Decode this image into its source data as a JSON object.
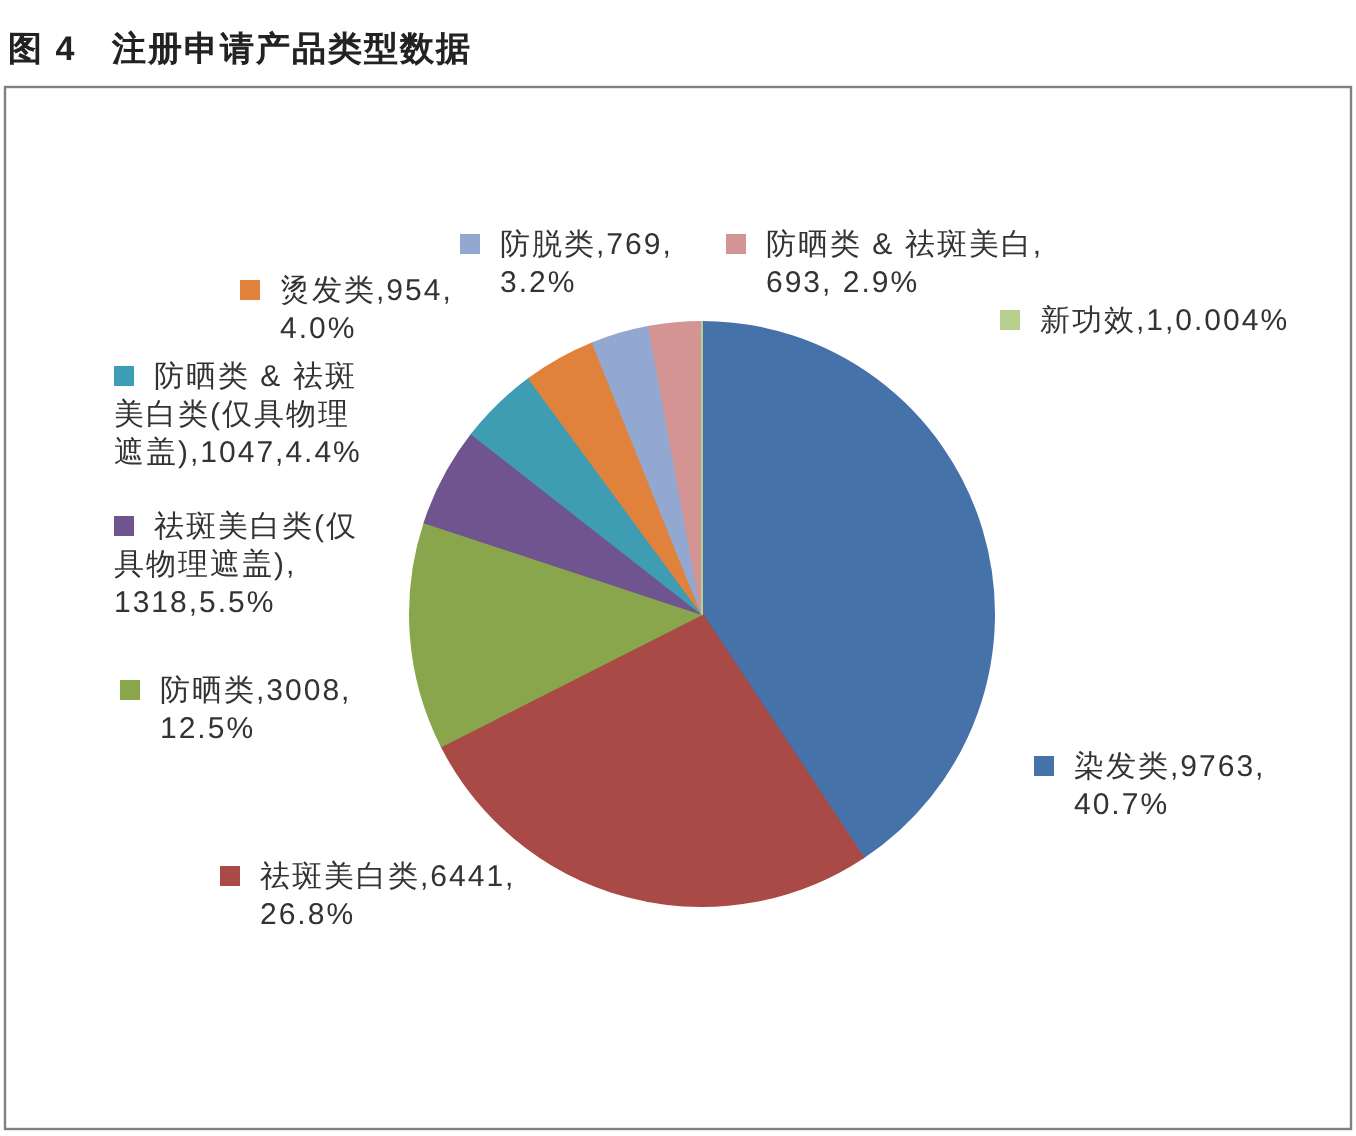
{
  "chart_data": {
    "type": "pie",
    "title": "图 4　注册申请产品类型数据",
    "categories": [
      "染发类",
      "祛斑美白类",
      "防晒类",
      "祛斑美白类(仅具物理遮盖)",
      "防晒类 & 祛斑美白类(仅具物理遮盖)",
      "烫发类",
      "防脱类",
      "防晒类 & 祛斑美白",
      "新功效"
    ],
    "values": [
      9763,
      6441,
      3008,
      1318,
      1047,
      954,
      769,
      693,
      1
    ],
    "colors": [
      "#4672aa",
      "#a94a46",
      "#8aa64c",
      "#70548f",
      "#3f9db3",
      "#e0823b",
      "#93a8d0",
      "#d39493",
      "#b8d08f"
    ],
    "value_labels": [
      ",9763,40.7%",
      ",6441,26.8%",
      ",3008,12.5%",
      ",1318,5.5%",
      ",1047,4.4%",
      ",954,4.0%",
      ",769,3.2%",
      ",693, 2.9%",
      ",1,0.004%"
    ],
    "legend": "left"
  }
}
